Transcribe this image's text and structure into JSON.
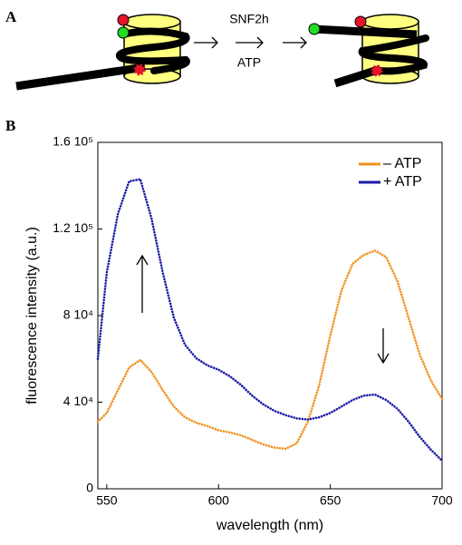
{
  "panel_a": {
    "label": "A",
    "enzyme": "SNF2h",
    "cofactor": "ATP"
  },
  "panel_b": {
    "label": "B"
  },
  "chart_data": {
    "type": "line",
    "xlabel": "wavelength (nm)",
    "ylabel": "fluorescence intensity (a.u.)",
    "x": [
      546,
      550,
      555,
      560,
      565,
      570,
      575,
      580,
      585,
      590,
      595,
      600,
      605,
      610,
      615,
      620,
      625,
      630,
      635,
      640,
      645,
      650,
      655,
      660,
      665,
      670,
      675,
      680,
      685,
      690,
      695,
      700
    ],
    "series": [
      {
        "name": "– ATP",
        "color": "#f0921e",
        "values": [
          31000,
          35000,
          45600,
          56000,
          59500,
          54000,
          45600,
          38000,
          33000,
          30500,
          29000,
          27000,
          26000,
          24700,
          22600,
          20500,
          19000,
          18500,
          21000,
          31000,
          47700,
          70800,
          91700,
          104000,
          108000,
          110000,
          107000,
          96000,
          79000,
          62000,
          50000,
          41500
        ]
      },
      {
        "name": "+ ATP",
        "color": "#1a1aa8",
        "values": [
          60000,
          100000,
          127000,
          142000,
          143000,
          125000,
          100000,
          79000,
          66500,
          60300,
          57000,
          55000,
          52000,
          48000,
          43000,
          39000,
          36000,
          34000,
          32500,
          32000,
          33000,
          35000,
          38000,
          41000,
          43000,
          43500,
          41000,
          37000,
          31000,
          24000,
          18000,
          13000
        ]
      }
    ],
    "xlim": [
      546,
      700
    ],
    "xticks": [
      550,
      600,
      650,
      700
    ],
    "ylim": [
      0,
      160000
    ],
    "yticks": [
      0,
      {
        "value": 40000,
        "label": "4 10⁴"
      },
      {
        "value": 80000,
        "label": "8 10⁴"
      },
      {
        "value": 120000,
        "label": "1.2 10⁵"
      },
      {
        "value": 160000,
        "label": "1.6 10⁵"
      }
    ],
    "legend": "upper right"
  }
}
